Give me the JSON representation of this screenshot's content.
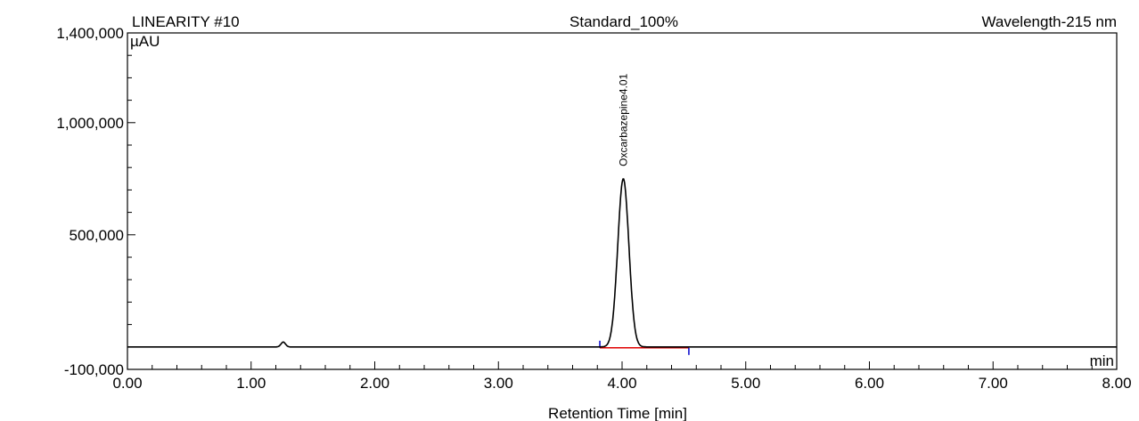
{
  "chart_data": {
    "type": "line",
    "header": {
      "left": "LINEARITY #10",
      "center": "Standard_100%",
      "right": "Wavelength-215 nm"
    },
    "y_unit": "µAU",
    "x_unit": "min",
    "xlabel": "Retention Time [min]",
    "xlim": [
      0,
      8
    ],
    "ylim": [
      -100000,
      1400000
    ],
    "x_ticks": [
      "0.00",
      "1.00",
      "2.00",
      "3.00",
      "4.00",
      "5.00",
      "6.00",
      "7.00",
      "8.00"
    ],
    "y_ticks": [
      {
        "value": 1400000,
        "label": "1,400,000"
      },
      {
        "value": 1000000,
        "label": "1,000,000"
      },
      {
        "value": 500000,
        "label": "500,000"
      },
      {
        "value": -100000,
        "label": "-100,000"
      }
    ],
    "baseline": 0,
    "peaks": [
      {
        "name": "Oxcarbazepine",
        "rt": 4.01,
        "height": 750000,
        "label": "Oxcarbazepine4.01",
        "integration": [
          3.82,
          4.54
        ]
      }
    ],
    "minor_peaks": [
      {
        "rt": 1.26,
        "height": 22000
      }
    ],
    "colors": {
      "trace": "#000000",
      "baseline": "#e00000",
      "markers": "#0000cc"
    }
  }
}
